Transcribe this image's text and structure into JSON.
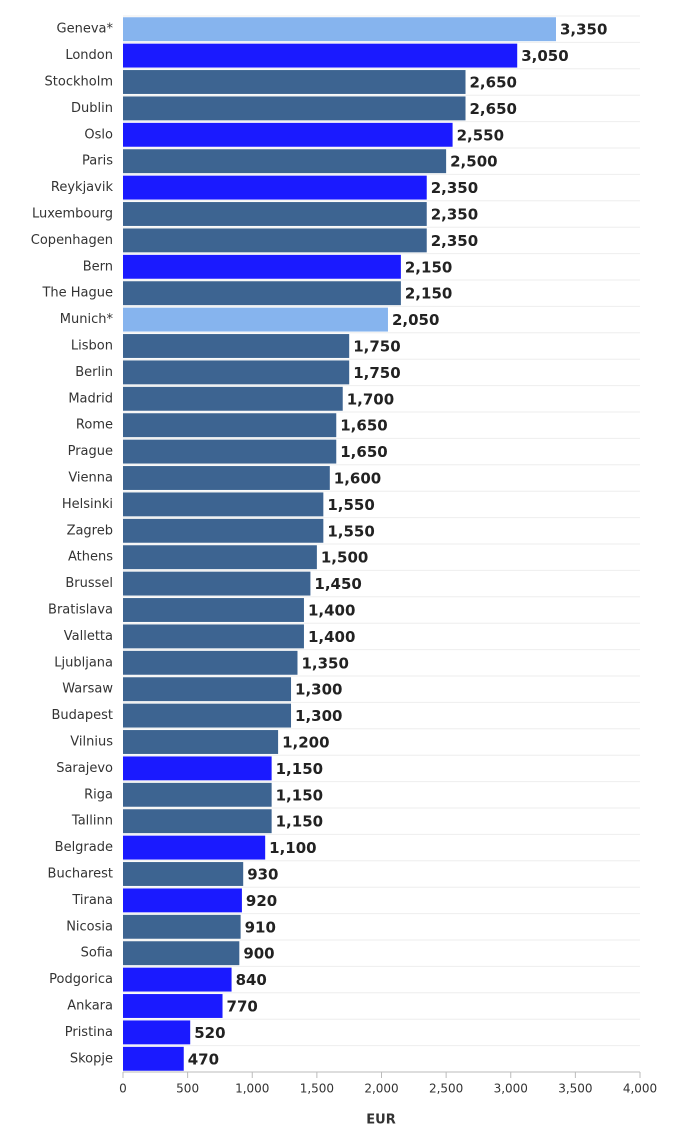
{
  "chart_data": {
    "type": "hbar",
    "categories": [
      "Geneva*",
      "London",
      "Stockholm",
      "Dublin",
      "Oslo",
      "Paris",
      "Reykjavik",
      "Luxembourg",
      "Copenhagen",
      "Bern",
      "The Hague",
      "Munich*",
      "Lisbon",
      "Berlin",
      "Madrid",
      "Rome",
      "Prague",
      "Vienna",
      "Helsinki",
      "Zagreb",
      "Athens",
      "Brussel",
      "Bratislava",
      "Valletta",
      "Ljubljana",
      "Warsaw",
      "Budapest",
      "Vilnius",
      "Sarajevo",
      "Riga",
      "Tallinn",
      "Belgrade",
      "Bucharest",
      "Tirana",
      "Nicosia",
      "Sofia",
      "Podgorica",
      "Ankara",
      "Pristina",
      "Skopje"
    ],
    "values": [
      3350,
      3050,
      2650,
      2650,
      2550,
      2500,
      2350,
      2350,
      2350,
      2150,
      2150,
      2050,
      1750,
      1750,
      1700,
      1650,
      1650,
      1600,
      1550,
      1550,
      1500,
      1450,
      1400,
      1400,
      1350,
      1300,
      1300,
      1200,
      1150,
      1150,
      1150,
      1100,
      930,
      920,
      910,
      900,
      840,
      770,
      520,
      470
    ],
    "value_labels": [
      "3,350",
      "3,050",
      "2,650",
      "2,650",
      "2,550",
      "2,500",
      "2,350",
      "2,350",
      "2,350",
      "2,150",
      "2,150",
      "2,050",
      "1,750",
      "1,750",
      "1,700",
      "1,650",
      "1,650",
      "1,600",
      "1,550",
      "1,550",
      "1,500",
      "1,450",
      "1,400",
      "1,400",
      "1,350",
      "1,300",
      "1,300",
      "1,200",
      "1,150",
      "1,150",
      "1,150",
      "1,100",
      "930",
      "920",
      "910",
      "900",
      "840",
      "770",
      "520",
      "470"
    ],
    "colors": [
      "#86b4ee",
      "#1a1aff",
      "#3d6491",
      "#3d6491",
      "#1a1aff",
      "#3d6491",
      "#1a1aff",
      "#3d6491",
      "#3d6491",
      "#1a1aff",
      "#3d6491",
      "#86b4ee",
      "#3d6491",
      "#3d6491",
      "#3d6491",
      "#3d6491",
      "#3d6491",
      "#3d6491",
      "#3d6491",
      "#3d6491",
      "#3d6491",
      "#3d6491",
      "#3d6491",
      "#3d6491",
      "#3d6491",
      "#3d6491",
      "#3d6491",
      "#3d6491",
      "#1a1aff",
      "#3d6491",
      "#3d6491",
      "#1a1aff",
      "#3d6491",
      "#1a1aff",
      "#3d6491",
      "#3d6491",
      "#1a1aff",
      "#1a1aff",
      "#1a1aff",
      "#1a1aff"
    ],
    "xlabel": "EUR",
    "xlim": [
      0,
      4000
    ],
    "xticks": [
      0,
      500,
      {
        "value": 1000,
        "label": "1,000"
      },
      {
        "value": 1500,
        "label": "1,500"
      },
      {
        "value": 2000,
        "label": "2,000"
      },
      {
        "value": 2500,
        "label": "2,500"
      },
      {
        "value": 3000,
        "label": "3,000"
      },
      {
        "value": 3500,
        "label": "3,500"
      },
      {
        "value": 4000,
        "label": "4,000"
      }
    ]
  }
}
